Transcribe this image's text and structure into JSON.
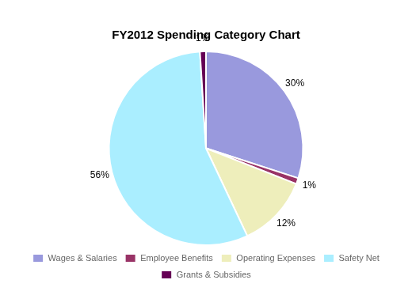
{
  "chart_data": {
    "type": "pie",
    "title": "FY2012 Spending Category Chart",
    "categories": [
      "Wages & Salaries",
      "Employee Benefits",
      "Operating Expenses",
      "Safety Net",
      "Grants & Subsidies"
    ],
    "values": [
      30,
      1,
      12,
      56,
      1
    ],
    "value_labels": [
      "30%",
      "1%",
      "12%",
      "56%",
      "1%"
    ],
    "colors": [
      "#9999dd",
      "#993366",
      "#eeeebb",
      "#aaeeff",
      "#660055"
    ],
    "data_labels": true,
    "legend": "bottom"
  }
}
